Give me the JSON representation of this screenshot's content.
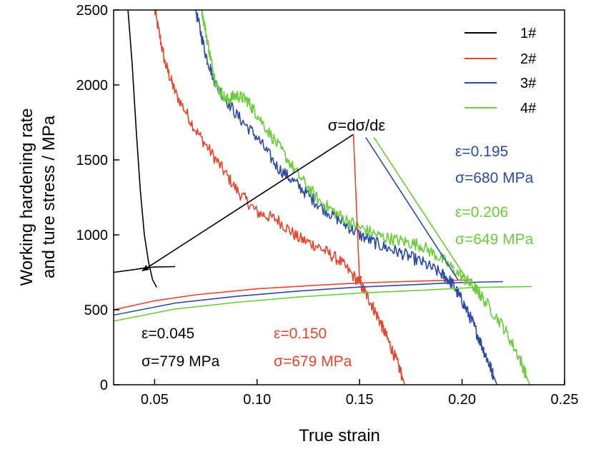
{
  "chart_data": {
    "type": "line",
    "xlabel": "True strain",
    "ylabel_line1": "Working hardening rate",
    "ylabel_line2": "and ture stress / MPa",
    "xlim": [
      0.03,
      0.25
    ],
    "ylim": [
      0,
      2500
    ],
    "x_ticks": [
      "0.05",
      "0.10",
      "0.15",
      "0.20",
      "0.25"
    ],
    "y_ticks": [
      "0",
      "500",
      "1000",
      "1500",
      "2000",
      "2500"
    ],
    "grid": false,
    "legend_position": "top-right",
    "colors": {
      "1#": "#000000",
      "2#": "#e8432b",
      "3#": "#2a4aa6",
      "4#": "#6ccc3c"
    },
    "series": [
      {
        "name": "1#",
        "kind": "hardening_rate",
        "color": "#000000",
        "noise": 0,
        "points": [
          [
            0.037,
            2500
          ],
          [
            0.039,
            2150
          ],
          [
            0.041,
            1700
          ],
          [
            0.043,
            1300
          ],
          [
            0.045,
            1000
          ],
          [
            0.047,
            820
          ],
          [
            0.049,
            700
          ],
          [
            0.051,
            650
          ]
        ]
      },
      {
        "name": "1#",
        "kind": "true_stress",
        "color": "#000000",
        "noise": 0,
        "points": [
          [
            0.03,
            750
          ],
          [
            0.04,
            768
          ],
          [
            0.045,
            779
          ],
          [
            0.05,
            785
          ],
          [
            0.06,
            788
          ]
        ]
      },
      {
        "name": "2#",
        "kind": "hardening_rate",
        "color": "#e8432b",
        "noise": 14,
        "points": [
          [
            0.05,
            2500
          ],
          [
            0.055,
            2150
          ],
          [
            0.06,
            1950
          ],
          [
            0.07,
            1700
          ],
          [
            0.08,
            1500
          ],
          [
            0.09,
            1300
          ],
          [
            0.1,
            1150
          ],
          [
            0.11,
            1100
          ],
          [
            0.12,
            980
          ],
          [
            0.13,
            920
          ],
          [
            0.14,
            830
          ],
          [
            0.15,
            680
          ],
          [
            0.155,
            560
          ],
          [
            0.16,
            420
          ],
          [
            0.165,
            260
          ],
          [
            0.17,
            90
          ],
          [
            0.172,
            0
          ]
        ]
      },
      {
        "name": "2#",
        "kind": "true_stress",
        "color": "#e8432b",
        "noise": 0,
        "points": [
          [
            0.03,
            500
          ],
          [
            0.05,
            560
          ],
          [
            0.07,
            600
          ],
          [
            0.1,
            640
          ],
          [
            0.13,
            665
          ],
          [
            0.15,
            679
          ],
          [
            0.18,
            692
          ],
          [
            0.205,
            700
          ]
        ]
      },
      {
        "name": "3#",
        "kind": "hardening_rate",
        "color": "#2a4aa6",
        "noise": 14,
        "points": [
          [
            0.07,
            2500
          ],
          [
            0.075,
            2200
          ],
          [
            0.08,
            2000
          ],
          [
            0.09,
            1800
          ],
          [
            0.1,
            1650
          ],
          [
            0.11,
            1450
          ],
          [
            0.12,
            1330
          ],
          [
            0.13,
            1200
          ],
          [
            0.14,
            1100
          ],
          [
            0.15,
            1000
          ],
          [
            0.16,
            930
          ],
          [
            0.17,
            880
          ],
          [
            0.18,
            820
          ],
          [
            0.19,
            740
          ],
          [
            0.195,
            680
          ],
          [
            0.2,
            560
          ],
          [
            0.205,
            420
          ],
          [
            0.21,
            250
          ],
          [
            0.214,
            110
          ],
          [
            0.217,
            0
          ]
        ]
      },
      {
        "name": "3#",
        "kind": "true_stress",
        "color": "#2a4aa6",
        "noise": 0,
        "points": [
          [
            0.03,
            465
          ],
          [
            0.06,
            545
          ],
          [
            0.09,
            590
          ],
          [
            0.12,
            625
          ],
          [
            0.15,
            652
          ],
          [
            0.18,
            670
          ],
          [
            0.195,
            680
          ],
          [
            0.22,
            688
          ]
        ]
      },
      {
        "name": "4#",
        "kind": "hardening_rate",
        "color": "#6ccc3c",
        "noise": 14,
        "points": [
          [
            0.073,
            2500
          ],
          [
            0.077,
            2200
          ],
          [
            0.08,
            2000
          ],
          [
            0.085,
            1900
          ],
          [
            0.09,
            1930
          ],
          [
            0.095,
            1900
          ],
          [
            0.1,
            1800
          ],
          [
            0.11,
            1600
          ],
          [
            0.12,
            1400
          ],
          [
            0.13,
            1230
          ],
          [
            0.14,
            1130
          ],
          [
            0.15,
            1050
          ],
          [
            0.16,
            990
          ],
          [
            0.17,
            960
          ],
          [
            0.18,
            930
          ],
          [
            0.19,
            840
          ],
          [
            0.2,
            720
          ],
          [
            0.206,
            649
          ],
          [
            0.21,
            580
          ],
          [
            0.22,
            390
          ],
          [
            0.228,
            180
          ],
          [
            0.233,
            0
          ]
        ]
      },
      {
        "name": "4#",
        "kind": "true_stress",
        "color": "#6ccc3c",
        "noise": 0,
        "points": [
          [
            0.03,
            425
          ],
          [
            0.06,
            505
          ],
          [
            0.09,
            550
          ],
          [
            0.12,
            585
          ],
          [
            0.15,
            612
          ],
          [
            0.18,
            630
          ],
          [
            0.206,
            649
          ],
          [
            0.234,
            655
          ]
        ]
      }
    ],
    "tangent_lines": [
      {
        "color": "#2a4aa6",
        "from": [
          0.153,
          1650
        ],
        "to": [
          0.198,
          700
        ]
      },
      {
        "color": "#6ccc3c",
        "from": [
          0.157,
          1650
        ],
        "to": [
          0.203,
          690
        ]
      }
    ],
    "annotation": {
      "formula": "σ=dσ/dε",
      "anchor": [
        0.147,
        1670
      ],
      "arrows": [
        {
          "color": "#000000",
          "to": [
            0.044,
            760
          ]
        },
        {
          "color": "#e8432b",
          "to": [
            0.15,
            680
          ]
        }
      ]
    },
    "points_labels": [
      {
        "color": "#000000",
        "eps": "ε=0.045",
        "sigma": "σ=779 MPa"
      },
      {
        "color": "#e8432b",
        "eps": "ε=0.150",
        "sigma": "σ=679 MPa"
      },
      {
        "color": "#2a4aa6",
        "eps": "ε=0.195",
        "sigma": "σ=680 MPa"
      },
      {
        "color": "#6ccc3c",
        "eps": "ε=0.206",
        "sigma": "σ=649 MPa"
      }
    ]
  }
}
